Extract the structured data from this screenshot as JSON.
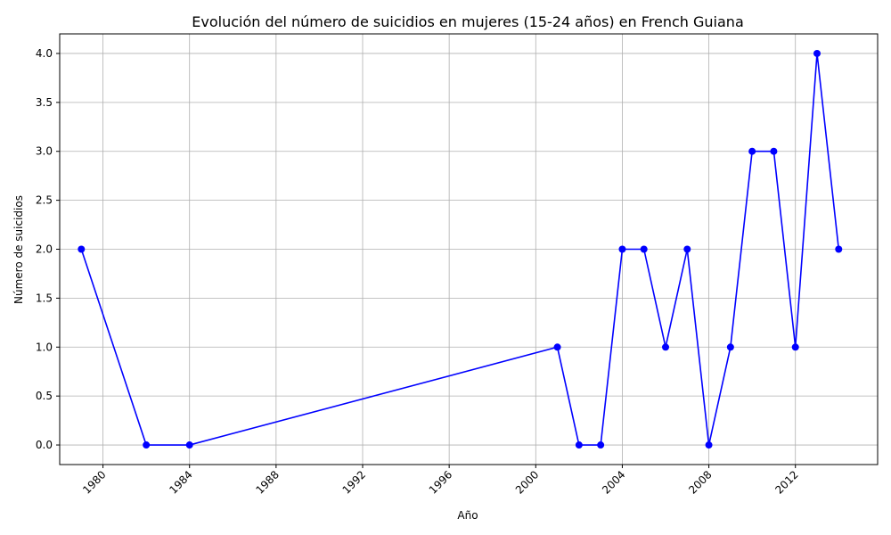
{
  "chart_data": {
    "type": "line",
    "title": "Evolución del número de suicidios en mujeres (15-24 años) en French Guiana",
    "xlabel": "Año",
    "ylabel": "Número de suicidios",
    "x": [
      1979,
      1982,
      1984,
      2001,
      2002,
      2003,
      2004,
      2005,
      2006,
      2007,
      2008,
      2009,
      2010,
      2011,
      2012,
      2013,
      2014
    ],
    "y": [
      2,
      0,
      0,
      1,
      0,
      0,
      2,
      2,
      1,
      2,
      0,
      1,
      3,
      3,
      1,
      4,
      2
    ],
    "xlim": [
      1978,
      2015.8
    ],
    "ylim": [
      -0.2,
      4.2
    ],
    "xticks": [
      "1980",
      "1984",
      "1988",
      "1992",
      "1996",
      "2000",
      "2004",
      "2008",
      "2012"
    ],
    "yticks": [
      "0.0",
      "0.5",
      "1.0",
      "1.5",
      "2.0",
      "2.5",
      "3.0",
      "3.5",
      "4.0"
    ],
    "grid": true,
    "line_color": "#0000ff",
    "marker_color": "#0000ff"
  }
}
